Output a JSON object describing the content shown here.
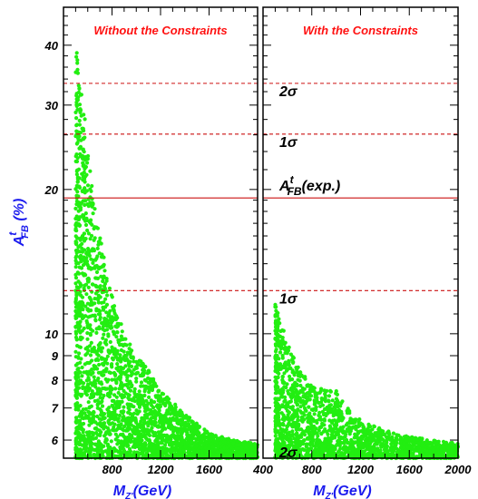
{
  "chart_data": [
    {
      "type": "scatter",
      "title": "Without the Constraints",
      "xlabel": "M",
      "xlabel_sub": "Z'",
      "xlabel_unit": "(GeV)",
      "ylabel": "A",
      "ylabel_sup": "t",
      "ylabel_sub": "FB",
      "ylabel_unit": "(%)",
      "yscale": "log",
      "xlim": [
        400,
        2000
      ],
      "ylim": [
        5.5,
        48
      ],
      "xticks": [
        800,
        1200,
        1600
      ],
      "yticks": [
        6,
        7,
        8,
        9,
        10,
        20,
        30,
        40
      ],
      "point_color": "#22ee11",
      "points_sampled": true,
      "envelope": {
        "x": [
          500,
          520,
          550,
          600,
          650,
          700,
          800,
          900,
          1000,
          1100,
          1200,
          1400,
          1600,
          1800,
          2000
        ],
        "y_max": [
          41,
          36,
          33,
          24,
          19,
          16,
          12,
          10,
          9,
          8.4,
          7.6,
          6.8,
          6.2,
          6.0,
          5.9
        ],
        "y_min": [
          5.5,
          5.5,
          5.5,
          5.5,
          5.5,
          5.5,
          5.5,
          5.5,
          5.5,
          5.5,
          5.5,
          5.5,
          5.5,
          5.5,
          5.5
        ]
      },
      "hlines": [
        {
          "y": 33.3,
          "style": "dashed",
          "label": ""
        },
        {
          "y": 26.1,
          "style": "dashed",
          "label": ""
        },
        {
          "y": 19.2,
          "style": "solid",
          "label": ""
        },
        {
          "y": 12.3,
          "style": "dashed",
          "label": ""
        },
        {
          "y": 5.5,
          "style": "dashed",
          "label": ""
        }
      ]
    },
    {
      "type": "scatter",
      "title": "With the Constraints",
      "xlabel": "M",
      "xlabel_sub": "Z'",
      "xlabel_unit": "(GeV)",
      "yscale": "log",
      "xlim": [
        400,
        2000
      ],
      "ylim": [
        5.5,
        48
      ],
      "xticks": [
        400,
        800,
        1200,
        1600,
        2000
      ],
      "point_color": "#22ee11",
      "points_sampled": true,
      "envelope": {
        "x": [
          500,
          520,
          550,
          600,
          650,
          700,
          800,
          900,
          1000,
          1100,
          1200,
          1400,
          1600,
          1800,
          2000
        ],
        "y_max": [
          11.7,
          11.2,
          10.8,
          9.5,
          9.0,
          8.4,
          7.8,
          7.7,
          7.6,
          7.0,
          6.6,
          6.3,
          6.1,
          6.0,
          5.9
        ],
        "y_min": [
          5.5,
          5.5,
          5.5,
          5.5,
          5.5,
          5.5,
          5.5,
          5.5,
          5.5,
          5.5,
          5.5,
          5.5,
          5.5,
          5.5,
          5.5
        ]
      },
      "hlines": [
        {
          "y": 33.3,
          "style": "dashed",
          "label": "2σ"
        },
        {
          "y": 26.1,
          "style": "dashed",
          "label": "1σ"
        },
        {
          "y": 19.2,
          "style": "solid",
          "label": "A",
          "label_sup": "t",
          "label_sub": "FB",
          "label_suffix": "(exp.)"
        },
        {
          "y": 12.3,
          "style": "dashed",
          "label": "1σ"
        },
        {
          "y": 5.5,
          "style": "dashed",
          "label": "2σ"
        }
      ]
    }
  ],
  "colors": {
    "title": "#ff1111",
    "axis_label": "#1a1aee",
    "line": "#cc1111",
    "frame": "#000000"
  }
}
